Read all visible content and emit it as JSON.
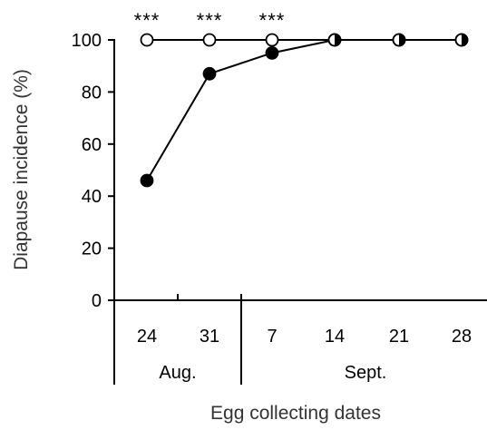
{
  "chart_data": {
    "type": "line",
    "ylabel": "Diapause incidence (%)",
    "xlabel": "Egg collecting dates",
    "ylim": [
      0,
      100
    ],
    "yticks": [
      0,
      20,
      40,
      60,
      80,
      100
    ],
    "grid": false,
    "categories": [
      "24",
      "31",
      "7",
      "14",
      "21",
      "28"
    ],
    "month_groups": [
      {
        "label": "Aug.",
        "span": [
          0,
          1
        ]
      },
      {
        "label": "Sept.",
        "span": [
          2,
          5
        ]
      }
    ],
    "significance": [
      {
        "category_index": 0,
        "label": "***"
      },
      {
        "category_index": 1,
        "label": "***"
      },
      {
        "category_index": 2,
        "label": "***"
      }
    ],
    "series": [
      {
        "marker": "open-circle",
        "values": [
          100,
          100,
          100,
          100,
          100,
          100
        ]
      },
      {
        "marker": "filled-circle",
        "values": [
          46,
          87,
          95,
          100,
          100,
          100
        ]
      }
    ],
    "overlap_marker": "half-filled-circle"
  }
}
